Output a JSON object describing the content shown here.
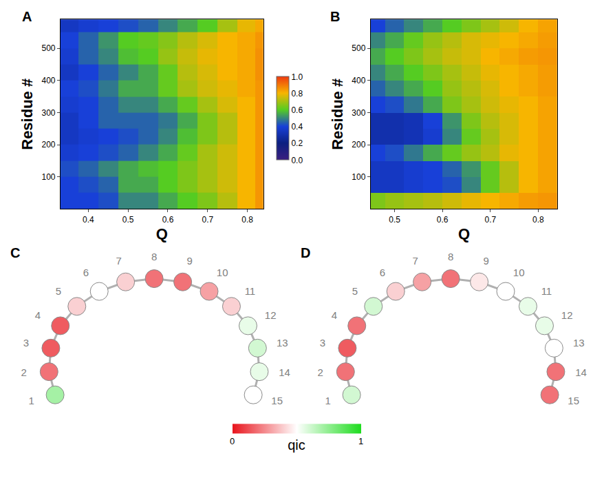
{
  "chart_data": [
    {
      "type": "heatmap",
      "panel": "A",
      "x_label": "Q",
      "y_label": "Residue #",
      "x": [
        0.35,
        0.4,
        0.45,
        0.5,
        0.55,
        0.6,
        0.65,
        0.7,
        0.75,
        0.8,
        0.84
      ],
      "y": [
        25,
        75,
        125,
        175,
        225,
        275,
        325,
        375,
        425,
        475,
        525,
        575
      ],
      "z": [
        [
          0.4,
          0.4,
          0.42,
          0.5,
          0.5,
          0.55,
          0.6,
          0.65,
          0.72,
          0.8,
          0.85
        ],
        [
          0.4,
          0.42,
          0.45,
          0.55,
          0.55,
          0.6,
          0.65,
          0.7,
          0.75,
          0.8,
          0.85
        ],
        [
          0.42,
          0.45,
          0.5,
          0.55,
          0.58,
          0.6,
          0.65,
          0.7,
          0.75,
          0.8,
          0.85
        ],
        [
          0.38,
          0.4,
          0.42,
          0.45,
          0.5,
          0.55,
          0.62,
          0.7,
          0.75,
          0.8,
          0.85
        ],
        [
          0.35,
          0.38,
          0.4,
          0.42,
          0.45,
          0.5,
          0.58,
          0.65,
          0.72,
          0.8,
          0.85
        ],
        [
          0.35,
          0.4,
          0.45,
          0.45,
          0.45,
          0.48,
          0.55,
          0.65,
          0.72,
          0.8,
          0.85
        ],
        [
          0.38,
          0.4,
          0.45,
          0.5,
          0.5,
          0.55,
          0.62,
          0.7,
          0.76,
          0.8,
          0.85
        ],
        [
          0.4,
          0.42,
          0.48,
          0.55,
          0.55,
          0.62,
          0.7,
          0.75,
          0.78,
          0.82,
          0.85
        ],
        [
          0.35,
          0.4,
          0.45,
          0.5,
          0.55,
          0.62,
          0.72,
          0.76,
          0.8,
          0.82,
          0.86
        ],
        [
          0.38,
          0.45,
          0.5,
          0.58,
          0.6,
          0.68,
          0.74,
          0.78,
          0.8,
          0.82,
          0.86
        ],
        [
          0.4,
          0.45,
          0.52,
          0.6,
          0.62,
          0.66,
          0.72,
          0.76,
          0.8,
          0.82,
          0.85
        ],
        [
          0.35,
          0.38,
          0.4,
          0.42,
          0.45,
          0.5,
          0.55,
          0.6,
          0.7,
          0.78,
          0.82
        ]
      ],
      "xlim": [
        0.33,
        0.84
      ],
      "xticks": [
        0.4,
        0.5,
        0.6,
        0.7,
        0.8
      ],
      "ylim": [
        0,
        590
      ],
      "yticks": [
        100,
        200,
        300,
        400,
        500
      ],
      "colorbar": {
        "range": [
          0,
          1
        ],
        "ticks": [
          {
            "value": 0,
            "label": "0.0"
          },
          {
            "value": 0.2,
            "label": "0.2"
          },
          {
            "value": 0.4,
            "label": "0.4"
          },
          {
            "value": 0.6,
            "label": "0.6"
          },
          {
            "value": 0.8,
            "label": "0.8"
          },
          {
            "value": 1,
            "label": "1.0"
          }
        ],
        "colors": [
          "#3a1f7f",
          "#0c1f80",
          "#1840d8",
          "#55cc22",
          "#f7b500",
          "#ee3a10"
        ]
      }
    },
    {
      "type": "heatmap",
      "panel": "B",
      "x_label": "Q",
      "y_label": "Residue #",
      "x": [
        0.46,
        0.5,
        0.54,
        0.58,
        0.62,
        0.66,
        0.7,
        0.74,
        0.78,
        0.82
      ],
      "y": [
        25,
        75,
        125,
        175,
        225,
        275,
        325,
        375,
        425,
        475,
        525,
        575
      ],
      "z": [
        [
          0.65,
          0.68,
          0.7,
          0.72,
          0.75,
          0.78,
          0.8,
          0.82,
          0.84,
          0.85
        ],
        [
          0.35,
          0.35,
          0.38,
          0.4,
          0.42,
          0.5,
          0.62,
          0.72,
          0.8,
          0.83
        ],
        [
          0.35,
          0.35,
          0.38,
          0.4,
          0.45,
          0.52,
          0.62,
          0.72,
          0.8,
          0.83
        ],
        [
          0.4,
          0.42,
          0.48,
          0.55,
          0.62,
          0.68,
          0.72,
          0.78,
          0.8,
          0.83
        ],
        [
          0.3,
          0.3,
          0.32,
          0.38,
          0.5,
          0.62,
          0.7,
          0.76,
          0.8,
          0.83
        ],
        [
          0.3,
          0.3,
          0.32,
          0.4,
          0.52,
          0.65,
          0.72,
          0.76,
          0.8,
          0.83
        ],
        [
          0.4,
          0.42,
          0.48,
          0.55,
          0.65,
          0.7,
          0.75,
          0.78,
          0.8,
          0.83
        ],
        [
          0.45,
          0.5,
          0.55,
          0.6,
          0.68,
          0.72,
          0.76,
          0.8,
          0.82,
          0.84
        ],
        [
          0.5,
          0.55,
          0.6,
          0.65,
          0.7,
          0.74,
          0.78,
          0.8,
          0.82,
          0.84
        ],
        [
          0.55,
          0.6,
          0.65,
          0.7,
          0.74,
          0.76,
          0.8,
          0.82,
          0.84,
          0.85
        ],
        [
          0.5,
          0.55,
          0.62,
          0.68,
          0.72,
          0.76,
          0.78,
          0.8,
          0.82,
          0.84
        ],
        [
          0.4,
          0.45,
          0.5,
          0.55,
          0.6,
          0.65,
          0.7,
          0.75,
          0.8,
          0.83
        ]
      ],
      "xlim": [
        0.45,
        0.84
      ],
      "xticks": [
        0.5,
        0.6,
        0.7,
        0.8
      ],
      "ylim": [
        0,
        590
      ],
      "yticks": [
        100,
        200,
        300,
        400,
        500
      ]
    },
    {
      "type": "repeat_map",
      "panel": "C",
      "categories": [
        "1",
        "2",
        "3",
        "4",
        "5",
        "6",
        "7",
        "8",
        "9",
        "10",
        "11",
        "12",
        "13",
        "14",
        "15"
      ],
      "values": [
        0.7,
        0.2,
        0.15,
        0.15,
        0.4,
        0.5,
        0.4,
        0.2,
        0.2,
        0.3,
        0.4,
        0.55,
        0.6,
        0.55,
        0.5
      ],
      "colorbar": {
        "title": "qic",
        "range": [
          0,
          1
        ],
        "ticks": [
          0,
          1
        ],
        "colors": [
          "#e8141c",
          "#ffffff",
          "#1edc1e"
        ]
      }
    },
    {
      "type": "repeat_map",
      "panel": "D",
      "categories": [
        "1",
        "2",
        "3",
        "4",
        "5",
        "6",
        "7",
        "8",
        "9",
        "10",
        "11",
        "12",
        "13",
        "14",
        "15"
      ],
      "values": [
        0.6,
        0.2,
        0.15,
        0.2,
        0.6,
        0.4,
        0.3,
        0.2,
        0.45,
        0.5,
        0.55,
        0.55,
        0.5,
        0.2,
        0.2
      ]
    }
  ]
}
